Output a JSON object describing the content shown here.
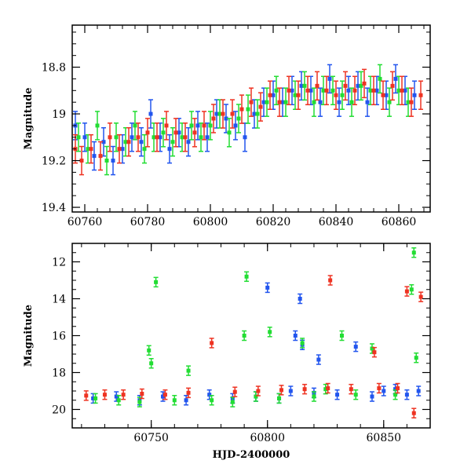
{
  "chart_data": [
    {
      "type": "scatter",
      "title": "",
      "xlabel": "",
      "ylabel": "Magnitude",
      "xlim": [
        60756,
        60870
      ],
      "ylim": [
        19.42,
        18.62
      ],
      "y_inverted": true,
      "grid": false,
      "legend": "none",
      "xticks": [
        60760,
        60780,
        60800,
        60820,
        60840,
        60860
      ],
      "xtick_labels": [
        "60760",
        "60780",
        "60800",
        "60820",
        "60840",
        "60860"
      ],
      "yticks": [
        18.8,
        19.0,
        19.2,
        19.4
      ],
      "ytick_labels": [
        "18.8",
        "19",
        "19.2",
        "19.4"
      ],
      "series": [
        {
          "color": "#2255ee",
          "x": [
            60757,
            60760,
            60763,
            60766,
            60769,
            60772,
            60775,
            60778,
            60781,
            60784,
            60787,
            60790,
            60793,
            60796,
            60799,
            60802,
            60805,
            60808,
            60811,
            60814,
            60817,
            60820,
            60823,
            60826,
            60829,
            60832,
            60835,
            60838,
            60841,
            60844,
            60847,
            60850,
            60853,
            60856,
            60859,
            60862,
            60865
          ],
          "y": [
            19.05,
            19.1,
            19.18,
            19.12,
            19.2,
            19.15,
            19.1,
            19.12,
            19.0,
            19.1,
            19.15,
            19.08,
            19.12,
            19.05,
            19.1,
            19.0,
            19.02,
            19.05,
            19.1,
            19.0,
            18.95,
            18.92,
            18.95,
            18.9,
            18.88,
            18.9,
            18.95,
            18.85,
            18.95,
            18.9,
            18.88,
            18.95,
            18.9,
            18.92,
            18.85,
            18.9,
            18.92
          ]
        },
        {
          "color": "#22dd33",
          "x": [
            60758,
            60761,
            60764,
            60767,
            60770,
            60773,
            60776,
            60779,
            60782,
            60785,
            60788,
            60791,
            60794,
            60797,
            60800,
            60803,
            60806,
            60809,
            60812,
            60815,
            60818,
            60821,
            60824,
            60827,
            60830,
            60833,
            60836,
            60839,
            60842,
            60845,
            60848,
            60851,
            60854,
            60857,
            60860,
            60863
          ],
          "y": [
            19.1,
            19.15,
            19.05,
            19.2,
            19.1,
            19.12,
            19.05,
            19.15,
            19.1,
            19.08,
            19.12,
            19.1,
            19.05,
            19.1,
            19.05,
            19.0,
            19.08,
            19.02,
            18.98,
            19.0,
            18.95,
            18.9,
            18.95,
            18.92,
            18.88,
            18.95,
            18.9,
            18.9,
            18.92,
            18.95,
            18.88,
            18.9,
            18.85,
            18.95,
            18.9,
            18.95
          ]
        },
        {
          "color": "#ee3322",
          "x": [
            60757,
            60759,
            60762,
            60765,
            60768,
            60771,
            60774,
            60777,
            60780,
            60783,
            60786,
            60789,
            60792,
            60795,
            60798,
            60801,
            60804,
            60807,
            60810,
            60813,
            60816,
            60819,
            60822,
            60825,
            60828,
            60831,
            60834,
            60837,
            60840,
            60843,
            60846,
            60849,
            60852,
            60855,
            60858,
            60861,
            60864,
            60867
          ],
          "y": [
            19.15,
            19.2,
            19.15,
            19.18,
            19.1,
            19.15,
            19.12,
            19.1,
            19.08,
            19.1,
            19.05,
            19.08,
            19.1,
            19.08,
            19.05,
            19.02,
            19.0,
            19.0,
            18.98,
            18.95,
            18.97,
            18.92,
            18.95,
            18.9,
            18.92,
            18.9,
            18.88,
            18.9,
            18.92,
            18.88,
            18.9,
            18.87,
            18.9,
            18.92,
            18.88,
            18.9,
            18.95,
            18.92
          ]
        }
      ]
    },
    {
      "type": "scatter",
      "title": "",
      "xlabel": "HJD-2400000",
      "ylabel": "Magnitude",
      "xlim": [
        60716,
        60870
      ],
      "ylim": [
        21.0,
        11.0
      ],
      "y_inverted": true,
      "grid": false,
      "legend": "none",
      "xticks": [
        60750,
        60800,
        60850
      ],
      "xtick_labels": [
        "60750",
        "60800",
        "60850"
      ],
      "yticks": [
        12,
        14,
        16,
        18,
        20
      ],
      "ytick_labels": [
        "12",
        "14",
        "16",
        "18",
        "20"
      ],
      "series": [
        {
          "color": "#2255ee",
          "x": [
            60725,
            60735,
            60745,
            60755,
            60765,
            60775,
            60785,
            60795,
            60800,
            60805,
            60810,
            60812,
            60814,
            60815,
            60820,
            60822,
            60830,
            60838,
            60845,
            60850,
            60855,
            60860,
            60865
          ],
          "y": [
            19.4,
            19.3,
            19.5,
            19.3,
            19.5,
            19.2,
            19.4,
            19.3,
            13.4,
            19.4,
            19.0,
            16.0,
            14.0,
            16.5,
            19.1,
            17.3,
            19.2,
            16.6,
            19.3,
            19.0,
            18.9,
            19.2,
            19.0
          ]
        },
        {
          "color": "#22dd33",
          "x": [
            60726,
            60736,
            60745,
            60749,
            60750,
            60752,
            60760,
            60766,
            60776,
            60785,
            60790,
            60791,
            60795,
            60801,
            60805,
            60815,
            60820,
            60825,
            60832,
            60838,
            60845,
            60855,
            60862,
            60863,
            60864
          ],
          "y": [
            19.4,
            19.5,
            19.6,
            16.8,
            17.5,
            13.1,
            19.5,
            17.9,
            19.5,
            19.6,
            16.0,
            12.8,
            19.3,
            15.8,
            19.4,
            16.4,
            19.3,
            18.9,
            16.0,
            19.2,
            16.7,
            19.2,
            13.5,
            11.5,
            17.2
          ]
        },
        {
          "color": "#ee3322",
          "x": [
            60722,
            60730,
            60738,
            60746,
            60756,
            60766,
            60776,
            60786,
            60796,
            60806,
            60816,
            60826,
            60827,
            60836,
            60846,
            60848,
            60856,
            60860,
            60863,
            60866
          ],
          "y": [
            19.25,
            19.2,
            19.2,
            19.15,
            19.2,
            19.1,
            16.4,
            19.05,
            19.0,
            18.95,
            18.9,
            18.85,
            13.0,
            18.9,
            16.9,
            18.85,
            18.85,
            13.6,
            20.2,
            13.9
          ]
        }
      ]
    }
  ]
}
